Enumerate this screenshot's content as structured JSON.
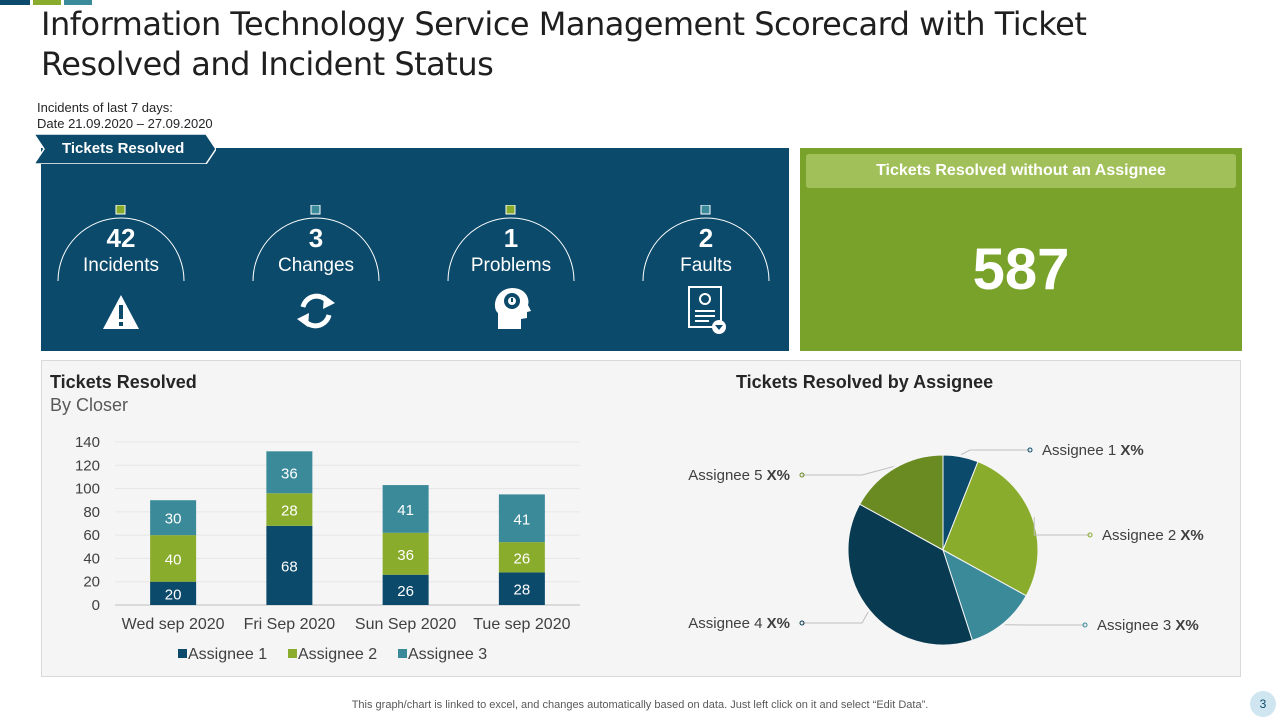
{
  "page": {
    "title": "Information Technology Service Management Scorecard with Ticket Resolved and Incident Status",
    "date_line1": "Incidents of last 7 days:",
    "date_line2": "Date 21.09.2020 – 27.09.2020",
    "footer_note": "This graph/chart is linked to excel, and changes automatically based on data. Just left click on it and select “Edit Data”.",
    "page_number": "3"
  },
  "tickets_panel": {
    "ribbon_label": "Tickets Resolved",
    "kpis": [
      {
        "value": "42",
        "label": "Incidents",
        "icon": "warning-icon",
        "dot_color": "#8aac2c"
      },
      {
        "value": "3",
        "label": "Changes",
        "icon": "refresh-icon",
        "dot_color": "#3b8a9a"
      },
      {
        "value": "1",
        "label": "Problems",
        "icon": "head-gear-icon",
        "dot_color": "#8aac2c"
      },
      {
        "value": "2",
        "label": "Faults",
        "icon": "certificate-icon",
        "dot_color": "#3b8a9a"
      }
    ]
  },
  "unassigned_panel": {
    "heading": "Tickets Resolved without an Assignee",
    "value": "587"
  },
  "colors": {
    "assignee1": "#0b4a6b",
    "assignee2": "#8aac2c",
    "assignee3": "#3b8a9a",
    "assignee4": "#083a52",
    "assignee5": "#6a8a22"
  },
  "chart_data": [
    {
      "type": "bar",
      "stacked": true,
      "title": "Tickets Resolved",
      "subtitle": "By Closer",
      "categories": [
        "Wed sep 2020",
        "Fri Sep 2020",
        "Sun Sep 2020",
        "Tue sep 2020"
      ],
      "series": [
        {
          "name": "Assignee 1",
          "values": [
            20,
            68,
            26,
            28
          ]
        },
        {
          "name": "Assignee 2",
          "values": [
            40,
            28,
            36,
            26
          ]
        },
        {
          "name": "Assignee 3",
          "values": [
            30,
            36,
            41,
            41
          ]
        }
      ],
      "ylim": [
        0,
        140
      ],
      "yticks": [
        0,
        20,
        40,
        60,
        80,
        100,
        120,
        140
      ],
      "legend": "bottom"
    },
    {
      "type": "pie",
      "title": "Tickets Resolved by Assignee",
      "slices": [
        {
          "name": "Assignee 1",
          "label": "Assignee 1",
          "value_label": "X%",
          "value": 6
        },
        {
          "name": "Assignee 2",
          "label": "Assignee 2",
          "value_label": "X%",
          "value": 27
        },
        {
          "name": "Assignee 3",
          "label": "Assignee 3",
          "value_label": "X%",
          "value": 12
        },
        {
          "name": "Assignee 4",
          "label": "Assignee 4",
          "value_label": "X%",
          "value": 38
        },
        {
          "name": "Assignee 5",
          "label": "Assignee 5",
          "value_label": "X%",
          "value": 17
        }
      ]
    }
  ]
}
